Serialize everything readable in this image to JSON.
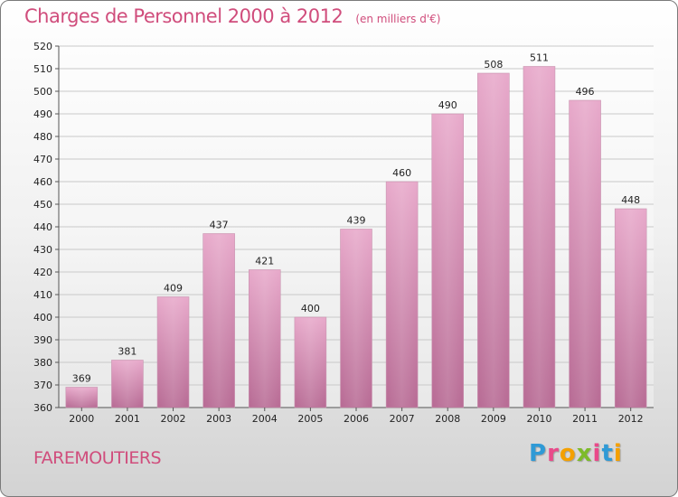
{
  "header": {
    "title": "Charges de Personnel 2000 à 2012",
    "subtitle": "(en milliers d'€)"
  },
  "footer": {
    "commune": "FAREMOUTIERS",
    "logo_letters": [
      "P",
      "r",
      "o",
      "x",
      "i",
      "t",
      "i"
    ],
    "logo_colors": [
      "#2f9ad6",
      "#e94a8a",
      "#f4a000",
      "#7dbb2a",
      "#e94a8a",
      "#2f9ad6",
      "#f4a000"
    ]
  },
  "colors": {
    "bar": "#c77aa3",
    "bar_highlight": "#e7a8ca",
    "title": "#d04d7c",
    "grid": "#c9c9c9"
  },
  "chart_data": {
    "type": "bar",
    "title": "Charges de Personnel 2000 à 2012",
    "subtitle": "(en milliers d'€)",
    "categories": [
      "2000",
      "2001",
      "2002",
      "2003",
      "2004",
      "2005",
      "2006",
      "2007",
      "2008",
      "2009",
      "2010",
      "2011",
      "2012"
    ],
    "values": [
      369,
      381,
      409,
      437,
      421,
      400,
      439,
      460,
      490,
      508,
      511,
      496,
      448
    ],
    "ylim": [
      360,
      520
    ],
    "yticks": [
      360,
      370,
      380,
      390,
      400,
      410,
      420,
      430,
      440,
      450,
      460,
      470,
      480,
      490,
      500,
      510,
      520
    ],
    "grid": true,
    "data_labels": true
  }
}
